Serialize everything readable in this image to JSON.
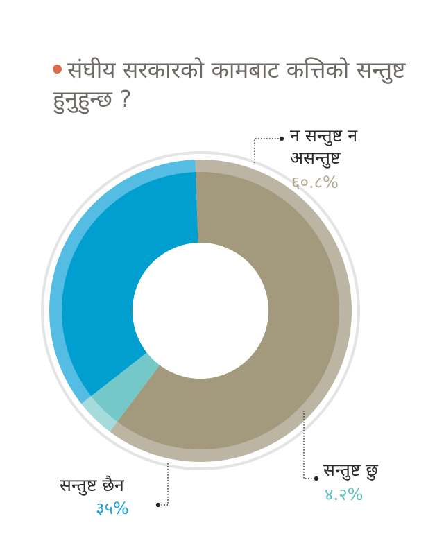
{
  "title": "संघीय सरकारको कामबाट कत्तिको सन्तुष्ट हुनुहुन्छ ?",
  "colors": {
    "title_dot": "#dd6a4b",
    "title_text": "#6d6a66",
    "label_text": "#2b2a29"
  },
  "chart_data": {
    "type": "pie",
    "donut": true,
    "slices": [
      {
        "label": "न सन्तुष्ट न असन्तुष्ट",
        "value": 60.8,
        "display": "६०.८%",
        "color": "#a39a7e",
        "rim": "#bdb5a4",
        "pct_color": "#b1a991"
      },
      {
        "label": "सन्तुष्ट छु",
        "value": 4.2,
        "display": "४.२%",
        "color": "#74c8c8",
        "rim": "#a6dbdb",
        "pct_color": "#5fbfbf"
      },
      {
        "label": "सन्तुष्ट छैन",
        "value": 35,
        "display": "३५%",
        "color": "#009fcf",
        "rim": "#55bde3",
        "pct_color": "#1aa3d4"
      }
    ]
  }
}
